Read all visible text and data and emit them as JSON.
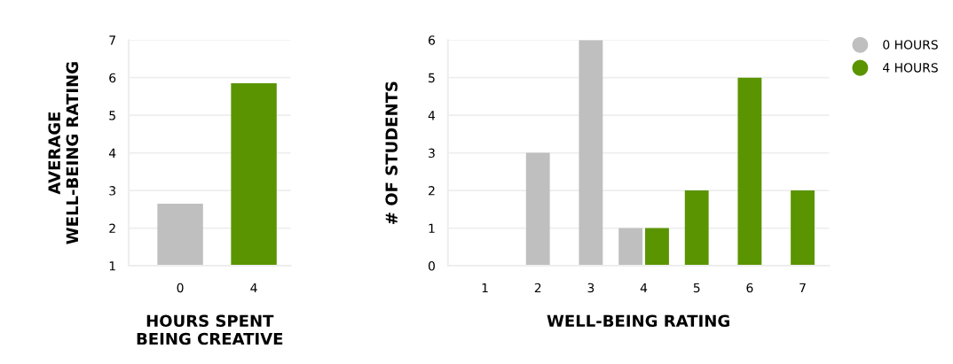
{
  "chart_data": [
    {
      "type": "bar",
      "xlabel": "HOURS SPENT\nBEING CREATIVE",
      "ylabel": "AVERAGE\nWELL-BEING RATING",
      "categories": [
        "0",
        "4"
      ],
      "values": [
        2.65,
        5.85
      ],
      "colors": [
        "#bfbfbf",
        "#5a9400"
      ],
      "ylim": [
        1,
        7
      ],
      "yticks": [
        1,
        2,
        3,
        4,
        5,
        6,
        7
      ],
      "grid": "y"
    },
    {
      "type": "bar",
      "xlabel": "WELL-BEING RATING",
      "ylabel": "# OF STUDENTS",
      "categories": [
        "1",
        "2",
        "3",
        "4",
        "5",
        "6",
        "7"
      ],
      "series": [
        {
          "name": "0 HOURS",
          "color": "#bfbfbf",
          "values": [
            null,
            3,
            6,
            1,
            null,
            null,
            null
          ]
        },
        {
          "name": "4 HOURS",
          "color": "#5a9400",
          "values": [
            null,
            null,
            null,
            1,
            2,
            5,
            2
          ]
        }
      ],
      "ylim": [
        0,
        6
      ],
      "yticks": [
        0,
        1,
        2,
        3,
        4,
        5,
        6
      ],
      "grid": "y",
      "legend": "top right"
    }
  ]
}
